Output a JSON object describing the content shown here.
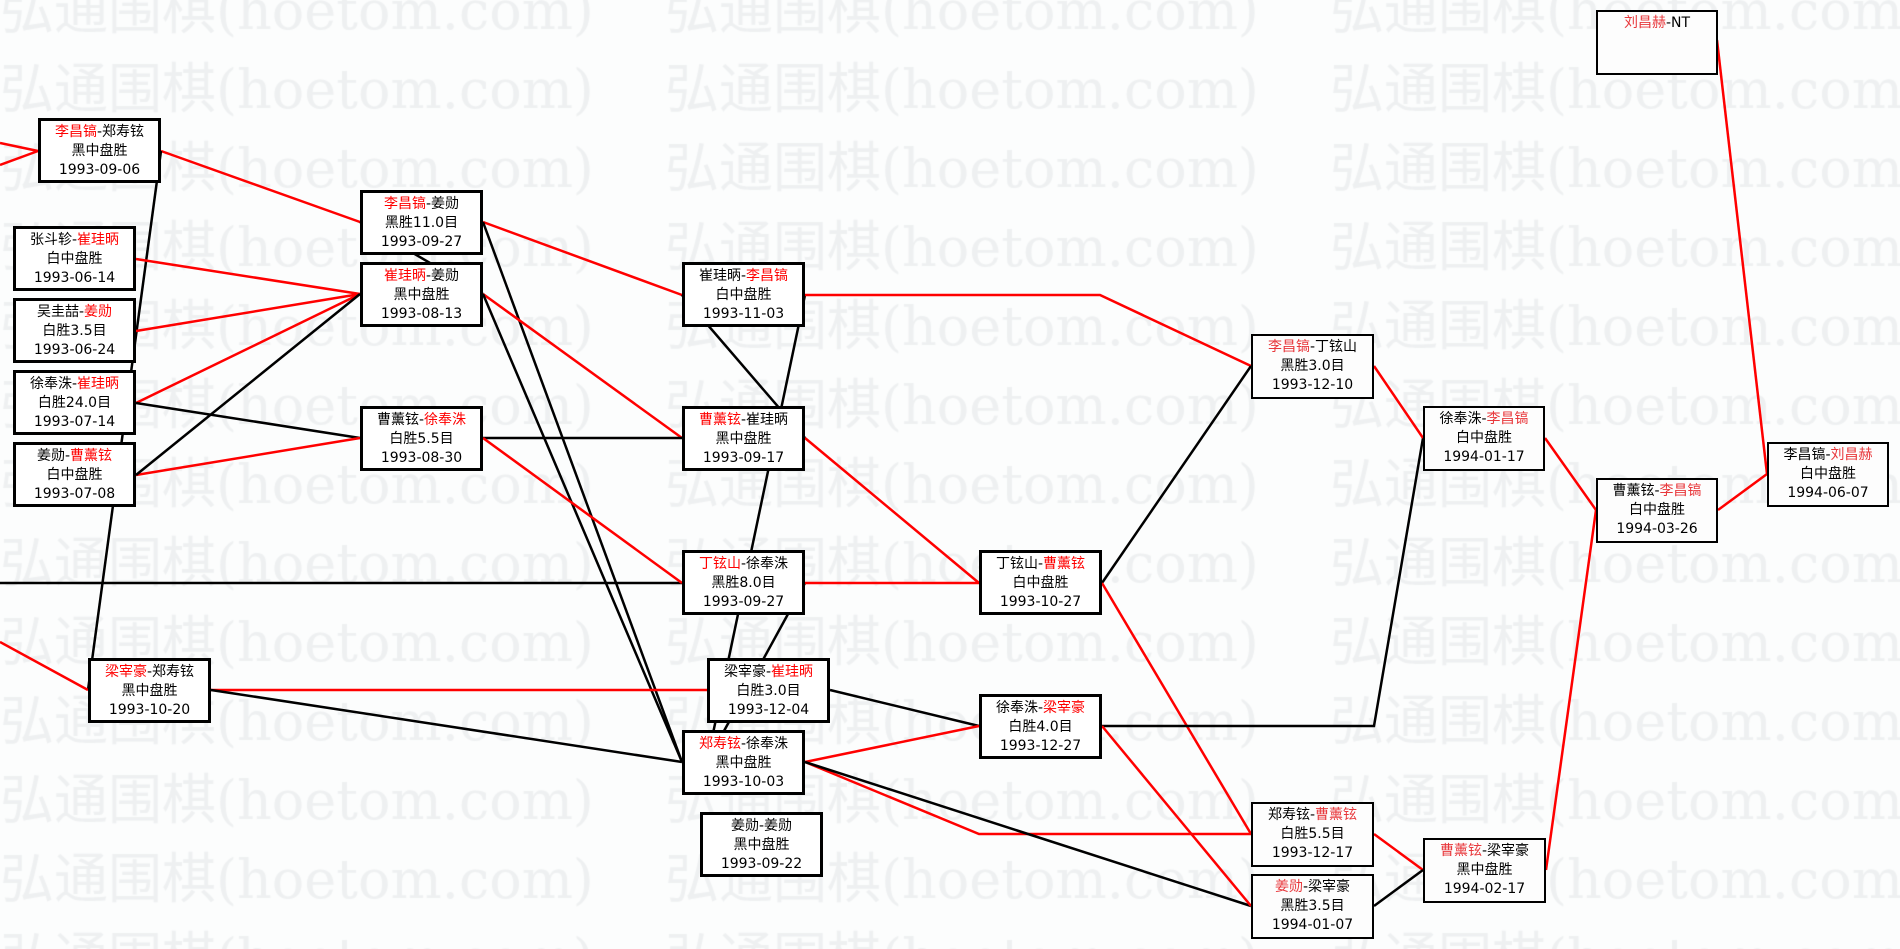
{
  "watermark": "弘通围棋(hoetom.com)",
  "colors": {
    "winner": "#ff0000",
    "loser_link": "#000000",
    "winner_link": "#ff0000"
  },
  "games": [
    {
      "p1": "李昌镐",
      "p2": "郑寿铉",
      "winner": 1,
      "result": "黑中盘胜",
      "date": "1993-09-06"
    },
    {
      "p1": "张斗轸",
      "p2": "崔珪昞",
      "winner": 2,
      "result": "白中盘胜",
      "date": "1993-06-14"
    },
    {
      "p1": "吴圭喆",
      "p2": "姜勋",
      "winner": 2,
      "result": "白胜3.5目",
      "date": "1993-06-24"
    },
    {
      "p1": "徐奉洙",
      "p2": "崔珪昞",
      "winner": 2,
      "result": "白胜24.0目",
      "date": "1993-07-14"
    },
    {
      "p1": "姜勋",
      "p2": "曹薰铉",
      "winner": 2,
      "result": "白中盘胜",
      "date": "1993-07-08"
    },
    {
      "p1": "梁宰豪",
      "p2": "郑寿铉",
      "winner": 1,
      "result": "黑中盘胜",
      "date": "1993-10-20"
    },
    {
      "p1": "李昌镐",
      "p2": "姜勋",
      "winner": 1,
      "result": "黑胜11.0目",
      "date": "1993-09-27"
    },
    {
      "p1": "崔珪昞",
      "p2": "姜勋",
      "winner": 1,
      "result": "黑中盘胜",
      "date": "1993-08-13"
    },
    {
      "p1": "曹薰铉",
      "p2": "徐奉洙",
      "winner": 2,
      "result": "白胜5.5目",
      "date": "1993-08-30"
    },
    {
      "p1": "崔珪昞",
      "p2": "李昌镐",
      "winner": 2,
      "result": "白中盘胜",
      "date": "1993-11-03"
    },
    {
      "p1": "曹薰铉",
      "p2": "崔珪昞",
      "winner": 1,
      "result": "黑中盘胜",
      "date": "1993-09-17"
    },
    {
      "p1": "丁铉山",
      "p2": "徐奉洙",
      "winner": 1,
      "result": "黑胜8.0目",
      "date": "1993-09-27"
    },
    {
      "p1": "梁宰豪",
      "p2": "崔珪昞",
      "winner": 2,
      "result": "白胜3.0目",
      "date": "1993-12-04"
    },
    {
      "p1": "郑寿铉",
      "p2": "徐奉洙",
      "winner": 1,
      "result": "黑中盘胜",
      "date": "1993-10-03"
    },
    {
      "p1": "姜勋",
      "p2": "姜勋",
      "winner": 0,
      "result": "黑中盘胜",
      "date": "1993-09-22"
    },
    {
      "p1": "丁铉山",
      "p2": "曹薰铉",
      "winner": 2,
      "result": "白中盘胜",
      "date": "1993-10-27"
    },
    {
      "p1": "徐奉洙",
      "p2": "梁宰豪",
      "winner": 2,
      "result": "白胜4.0目",
      "date": "1993-12-27"
    },
    {
      "p1": "李昌镐",
      "p2": "丁铉山",
      "winner": 1,
      "result": "黑胜3.0目",
      "date": "1993-12-10"
    },
    {
      "p1": "郑寿铉",
      "p2": "曹薰铉",
      "winner": 2,
      "result": "白胜5.5目",
      "date": "1993-12-17"
    },
    {
      "p1": "姜勋",
      "p2": "梁宰豪",
      "winner": 1,
      "result": "黑胜3.5目",
      "date": "1994-01-07"
    },
    {
      "p1": "徐奉洙",
      "p2": "李昌镐",
      "winner": 2,
      "result": "白中盘胜",
      "date": "1994-01-17"
    },
    {
      "p1": "曹薰铉",
      "p2": "梁宰豪",
      "winner": 1,
      "result": "黑中盘胜",
      "date": "1994-02-17"
    },
    {
      "p1": "曹薰铉",
      "p2": "李昌镐",
      "winner": 2,
      "result": "白中盘胜",
      "date": "1994-03-26"
    },
    {
      "p1": "李昌镐",
      "p2": "刘昌赫",
      "winner": 2,
      "result": "白中盘胜",
      "date": "1994-06-07"
    },
    {
      "p1": "刘昌赫",
      "p2": "NT",
      "winner": 1,
      "result": "",
      "date": ""
    }
  ]
}
